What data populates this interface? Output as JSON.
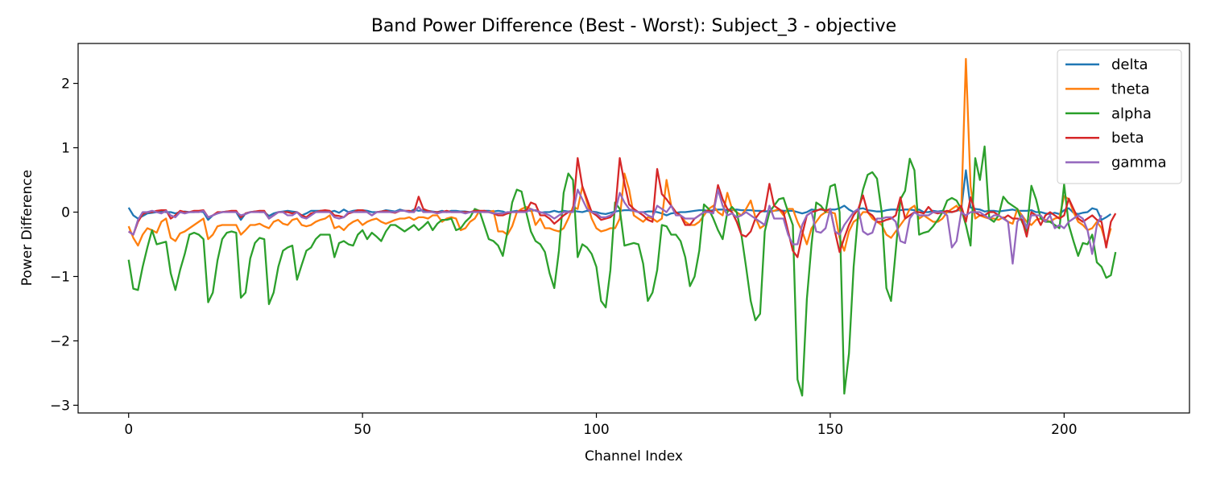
{
  "chart_data": {
    "type": "line",
    "title": "Band Power Difference (Best - Worst): Subject_3 - objective",
    "xlabel": "Channel Index",
    "ylabel": "Power Difference",
    "xlim": [
      -10.8,
      226.8
    ],
    "ylim": [
      -3.12,
      2.62
    ],
    "xticks": [
      0,
      50,
      100,
      150,
      200
    ],
    "yticks": [
      -3,
      -2,
      -1,
      0,
      1,
      2
    ],
    "tick_labels_x": [
      "0",
      "50",
      "100",
      "150",
      "200"
    ],
    "tick_labels_y": [
      "−3",
      "−2",
      "−1",
      "0",
      "1",
      "2"
    ],
    "grid": false,
    "legend_position": "top-right",
    "n_points": 216,
    "series": [
      {
        "name": "delta",
        "color": "#1f77b4",
        "values": [
          0.07,
          -0.05,
          -0.1,
          -0.06,
          -0.02,
          -0.01,
          0.0,
          0.01,
          0.0,
          0.0,
          -0.02,
          0.0,
          0.01,
          0.0,
          0.0,
          0.01,
          0.0,
          -0.12,
          -0.05,
          -0.02,
          0.0,
          0.01,
          0.01,
          0.0,
          -0.12,
          -0.02,
          0.0,
          0.01,
          0.0,
          0.0,
          -0.06,
          -0.02,
          0.0,
          0.01,
          0.02,
          0.01,
          0.0,
          -0.05,
          -0.02,
          0.02,
          0.02,
          0.02,
          0.01,
          0.0,
          0.02,
          -0.01,
          0.04,
          0.0,
          0.02,
          0.03,
          0.03,
          0.02,
          0.0,
          0.0,
          0.01,
          0.03,
          0.02,
          0.01,
          0.04,
          0.02,
          0.0,
          0.04,
          0.02,
          0.03,
          0.02,
          0.01,
          0.0,
          0.02,
          0.0,
          0.02,
          0.02,
          0.01,
          0.01,
          0.0,
          0.01,
          0.0,
          0.02,
          0.02,
          0.01,
          0.02,
          0.01,
          -0.02,
          0.01,
          0.02,
          0.01,
          0.03,
          0.02,
          0.03,
          -0.01,
          0.0,
          0.0,
          0.02,
          0.0,
          0.02,
          0.01,
          0.02,
          0.01,
          0.0,
          0.02,
          0.01,
          0.0,
          -0.02,
          -0.03,
          -0.01,
          0.01,
          0.02,
          0.03,
          0.03,
          0.02,
          0.0,
          0.0,
          0.01,
          0.01,
          0.0,
          -0.02,
          -0.05,
          -0.02,
          -0.01,
          0.0,
          0.0,
          0.01,
          0.02,
          0.03,
          0.03,
          0.02,
          0.03,
          0.04,
          0.04,
          0.03,
          0.03,
          0.04,
          0.03,
          0.03,
          0.03,
          0.02,
          0.02,
          0.01,
          0.02,
          0.02,
          0.03,
          0.02,
          0.02,
          0.02,
          0.0,
          -0.02,
          0.0,
          0.04,
          0.03,
          0.04,
          0.03,
          0.04,
          0.04,
          0.06,
          0.1,
          0.04,
          0.0,
          0.05,
          0.06,
          0.03,
          0.02,
          0.01,
          0.01,
          0.03,
          0.04,
          0.04,
          0.03,
          0.04,
          0.04,
          0.03,
          0.04,
          0.0,
          0.0,
          0.02,
          0.01,
          0.02,
          0.0,
          0.0,
          0.02,
          0.04,
          0.65,
          0.07,
          0.05,
          0.04,
          0.01,
          0.02,
          0.02,
          0.01,
          0.02,
          0.03,
          0.04,
          0.02,
          0.02,
          0.02,
          0.03,
          0.0,
          0.0,
          -0.02,
          -0.03,
          -0.01,
          -0.03,
          0.03,
          0.06,
          -0.01,
          -0.03,
          -0.01,
          0.0,
          0.06,
          0.04,
          -0.12,
          -0.08,
          -0.03
        ]
      },
      {
        "name": "theta",
        "color": "#ff7f0e",
        "values": [
          -0.22,
          -0.4,
          -0.52,
          -0.35,
          -0.25,
          -0.28,
          -0.32,
          -0.15,
          -0.1,
          -0.4,
          -0.45,
          -0.33,
          -0.3,
          -0.25,
          -0.2,
          -0.15,
          -0.1,
          -0.42,
          -0.35,
          -0.22,
          -0.2,
          -0.2,
          -0.2,
          -0.2,
          -0.35,
          -0.28,
          -0.2,
          -0.2,
          -0.18,
          -0.22,
          -0.25,
          -0.15,
          -0.12,
          -0.18,
          -0.2,
          -0.12,
          -0.1,
          -0.2,
          -0.22,
          -0.2,
          -0.15,
          -0.12,
          -0.1,
          -0.05,
          -0.25,
          -0.22,
          -0.28,
          -0.2,
          -0.15,
          -0.12,
          -0.2,
          -0.15,
          -0.12,
          -0.1,
          -0.15,
          -0.18,
          -0.15,
          -0.12,
          -0.1,
          -0.1,
          -0.08,
          -0.12,
          -0.08,
          -0.08,
          -0.1,
          -0.05,
          -0.05,
          -0.15,
          -0.1,
          -0.08,
          -0.1,
          -0.28,
          -0.25,
          -0.15,
          -0.1,
          0.02,
          0.0,
          0.0,
          0.02,
          -0.3,
          -0.3,
          -0.35,
          -0.22,
          0.0,
          0.05,
          0.08,
          0.05,
          -0.2,
          -0.1,
          -0.25,
          -0.25,
          -0.28,
          -0.3,
          -0.25,
          -0.1,
          0.08,
          0.05,
          0.4,
          0.15,
          -0.1,
          -0.25,
          -0.3,
          -0.28,
          -0.25,
          -0.25,
          -0.1,
          0.6,
          0.35,
          -0.05,
          -0.1,
          -0.15,
          -0.08,
          -0.1,
          -0.15,
          -0.1,
          0.5,
          0.1,
          0.0,
          -0.05,
          -0.15,
          -0.2,
          -0.2,
          -0.15,
          -0.05,
          0.05,
          0.1,
          0.0,
          -0.05,
          0.3,
          0.05,
          0.0,
          -0.05,
          0.05,
          0.18,
          -0.08,
          -0.25,
          -0.2,
          0.0,
          0.02,
          0.05,
          -0.05,
          0.05,
          0.05,
          -0.15,
          -0.3,
          -0.5,
          -0.25,
          -0.15,
          -0.05,
          0.0,
          0.0,
          -0.02,
          -0.4,
          -0.6,
          -0.3,
          -0.15,
          -0.1,
          0.0,
          0.0,
          -0.1,
          -0.15,
          -0.2,
          -0.35,
          -0.4,
          -0.3,
          -0.2,
          -0.1,
          0.05,
          0.1,
          -0.1,
          -0.05,
          -0.1,
          -0.15,
          -0.15,
          -0.1,
          0.0,
          0.05,
          0.1,
          0.0,
          2.38,
          0.4,
          -0.1,
          -0.05,
          -0.08,
          -0.1,
          -0.1,
          -0.12,
          -0.08,
          -0.15,
          -0.18,
          0.05,
          -0.05,
          -0.15,
          -0.2,
          -0.12,
          -0.1,
          -0.12,
          -0.15,
          -0.1,
          -0.08,
          0.25,
          0.2,
          0.0,
          -0.15,
          -0.2,
          -0.28,
          -0.25,
          -0.15,
          -0.25,
          -0.5,
          -0.25
        ]
      },
      {
        "name": "alpha",
        "color": "#2ca02c",
        "values": [
          -0.74,
          -1.19,
          -1.21,
          -0.85,
          -0.55,
          -0.28,
          -0.5,
          -0.48,
          -0.46,
          -0.95,
          -1.21,
          -0.9,
          -0.65,
          -0.35,
          -0.32,
          -0.35,
          -0.42,
          -1.4,
          -1.25,
          -0.75,
          -0.42,
          -0.32,
          -0.3,
          -0.32,
          -1.33,
          -1.25,
          -0.72,
          -0.48,
          -0.4,
          -0.42,
          -1.43,
          -1.25,
          -0.85,
          -0.6,
          -0.55,
          -0.52,
          -1.05,
          -0.82,
          -0.6,
          -0.55,
          -0.42,
          -0.35,
          -0.35,
          -0.35,
          -0.7,
          -0.48,
          -0.45,
          -0.5,
          -0.52,
          -0.35,
          -0.28,
          -0.42,
          -0.32,
          -0.38,
          -0.45,
          -0.3,
          -0.2,
          -0.2,
          -0.25,
          -0.3,
          -0.25,
          -0.2,
          -0.28,
          -0.22,
          -0.15,
          -0.28,
          -0.18,
          -0.12,
          -0.12,
          -0.1,
          -0.28,
          -0.25,
          -0.15,
          -0.08,
          0.05,
          0.02,
          -0.2,
          -0.42,
          -0.45,
          -0.52,
          -0.68,
          -0.3,
          0.15,
          0.35,
          0.32,
          0.0,
          -0.3,
          -0.45,
          -0.5,
          -0.62,
          -0.95,
          -1.18,
          -0.6,
          0.3,
          0.6,
          0.5,
          -0.7,
          -0.5,
          -0.55,
          -0.65,
          -0.85,
          -1.38,
          -1.48,
          -0.9,
          0.15,
          0.05,
          -0.52,
          -0.5,
          -0.48,
          -0.5,
          -0.8,
          -1.38,
          -1.25,
          -0.9,
          -0.2,
          -0.22,
          -0.35,
          -0.35,
          -0.45,
          -0.7,
          -1.15,
          -1.0,
          -0.6,
          0.12,
          0.05,
          -0.1,
          -0.28,
          -0.42,
          0.0,
          0.08,
          0.0,
          -0.35,
          -0.85,
          -1.38,
          -1.68,
          -1.58,
          -0.3,
          0.0,
          0.1,
          0.2,
          0.22,
          0.0,
          -0.2,
          -2.6,
          -2.85,
          -1.35,
          -0.5,
          0.15,
          0.1,
          0.0,
          0.4,
          0.43,
          0.0,
          -2.82,
          -2.2,
          -0.85,
          0.0,
          0.35,
          0.58,
          0.62,
          0.52,
          0.0,
          -1.18,
          -1.38,
          -0.6,
          0.2,
          0.33,
          0.83,
          0.65,
          -0.35,
          -0.32,
          -0.3,
          -0.22,
          -0.12,
          0.0,
          0.18,
          0.22,
          0.18,
          0.05,
          -0.2,
          -0.52,
          0.84,
          0.5,
          1.02,
          -0.1,
          -0.15,
          -0.05,
          0.24,
          0.15,
          0.1,
          0.05,
          -0.15,
          -0.3,
          0.41,
          0.2,
          -0.1,
          -0.15,
          -0.15,
          -0.2,
          -0.25,
          0.43,
          -0.2,
          -0.45,
          -0.68,
          -0.48,
          -0.5,
          -0.35,
          -0.78,
          -0.85,
          -1.02,
          -0.98,
          -0.62
        ]
      },
      {
        "name": "beta",
        "color": "#d62728",
        "values": [
          -0.3,
          -0.35,
          -0.15,
          -0.03,
          0.0,
          0.0,
          0.02,
          0.03,
          0.03,
          -0.1,
          -0.05,
          0.02,
          0.0,
          0.0,
          0.02,
          0.02,
          0.03,
          -0.08,
          -0.05,
          0.0,
          0.0,
          0.01,
          0.02,
          0.02,
          -0.08,
          -0.02,
          0.0,
          0.01,
          0.02,
          0.02,
          -0.1,
          -0.05,
          0.0,
          0.0,
          0.0,
          -0.02,
          0.0,
          -0.05,
          -0.08,
          -0.02,
          0.0,
          0.02,
          0.03,
          0.02,
          -0.05,
          -0.06,
          -0.08,
          -0.02,
          0.0,
          0.03,
          0.03,
          0.0,
          -0.05,
          0.0,
          0.01,
          0.02,
          0.0,
          -0.01,
          0.02,
          0.02,
          0.02,
          0.0,
          0.24,
          0.05,
          0.02,
          0.0,
          0.0,
          0.0,
          0.02,
          0.0,
          0.0,
          0.0,
          0.0,
          0.0,
          0.02,
          0.02,
          0.02,
          0.0,
          -0.02,
          -0.05,
          -0.05,
          -0.02,
          0.0,
          0.0,
          0.02,
          0.02,
          0.15,
          0.12,
          -0.05,
          -0.05,
          -0.1,
          -0.18,
          -0.12,
          -0.05,
          0.0,
          0.02,
          0.84,
          0.4,
          0.2,
          0.0,
          -0.05,
          -0.12,
          -0.1,
          -0.08,
          0.0,
          0.84,
          0.45,
          0.12,
          0.05,
          0.0,
          -0.05,
          -0.12,
          -0.15,
          0.67,
          0.28,
          0.2,
          0.1,
          0.0,
          -0.05,
          -0.2,
          -0.2,
          -0.1,
          -0.05,
          0.0,
          0.02,
          0.0,
          0.42,
          0.2,
          0.05,
          0.0,
          -0.15,
          -0.35,
          -0.38,
          -0.3,
          -0.1,
          0.0,
          0.03,
          0.44,
          0.1,
          0.05,
          0.0,
          -0.3,
          -0.6,
          -0.7,
          -0.35,
          -0.05,
          0.0,
          0.02,
          0.05,
          0.02,
          0.05,
          -0.3,
          -0.62,
          -0.4,
          -0.2,
          -0.05,
          0.05,
          0.26,
          0.0,
          -0.05,
          -0.15,
          -0.15,
          -0.12,
          -0.1,
          -0.05,
          0.23,
          -0.1,
          -0.05,
          0.0,
          0.0,
          -0.02,
          0.08,
          0.0,
          -0.02,
          0.0,
          0.02,
          0.0,
          0.02,
          0.1,
          -0.15,
          0.23,
          0.0,
          -0.05,
          -0.05,
          0.0,
          0.0,
          -0.05,
          -0.1,
          -0.05,
          -0.1,
          -0.1,
          -0.12,
          -0.38,
          0.0,
          -0.05,
          -0.2,
          -0.05,
          0.0,
          -0.05,
          -0.1,
          -0.05,
          0.21,
          0.05,
          -0.1,
          -0.15,
          -0.1,
          -0.05,
          -0.12,
          -0.15,
          -0.55,
          -0.15,
          -0.02
        ]
      },
      {
        "name": "gamma",
        "color": "#9467bd",
        "values": [
          -0.3,
          -0.35,
          -0.12,
          0.0,
          0.0,
          0.02,
          0.0,
          -0.02,
          0.02,
          -0.05,
          -0.08,
          0.0,
          -0.02,
          0.0,
          0.0,
          0.0,
          0.02,
          -0.08,
          -0.05,
          -0.02,
          0.0,
          0.0,
          0.0,
          0.0,
          -0.05,
          -0.03,
          0.0,
          0.0,
          0.0,
          0.0,
          -0.1,
          -0.05,
          0.0,
          0.0,
          -0.05,
          -0.05,
          0.0,
          -0.08,
          -0.1,
          -0.05,
          0.0,
          0.0,
          0.0,
          0.0,
          -0.08,
          -0.1,
          -0.08,
          0.0,
          0.0,
          0.0,
          0.0,
          0.0,
          -0.05,
          0.0,
          0.0,
          0.0,
          0.0,
          0.0,
          0.02,
          0.02,
          0.0,
          0.0,
          0.08,
          0.0,
          0.0,
          0.0,
          -0.02,
          0.0,
          0.0,
          0.0,
          0.0,
          0.0,
          -0.02,
          0.0,
          0.0,
          0.0,
          0.0,
          0.0,
          -0.02,
          -0.02,
          -0.02,
          0.0,
          0.0,
          0.0,
          0.0,
          0.0,
          0.05,
          0.02,
          0.0,
          -0.02,
          -0.05,
          -0.1,
          -0.05,
          0.0,
          0.0,
          0.0,
          0.35,
          0.2,
          0.05,
          0.0,
          -0.02,
          -0.08,
          -0.08,
          -0.05,
          0.0,
          0.3,
          0.15,
          0.05,
          0.02,
          0.0,
          0.0,
          -0.05,
          -0.08,
          0.1,
          0.05,
          0.0,
          0.1,
          -0.05,
          -0.05,
          -0.1,
          -0.1,
          -0.1,
          -0.05,
          0.0,
          0.0,
          -0.02,
          0.35,
          0.1,
          -0.05,
          -0.02,
          -0.08,
          -0.05,
          0.0,
          -0.05,
          -0.1,
          -0.15,
          -0.2,
          0.1,
          -0.1,
          -0.1,
          -0.1,
          -0.35,
          -0.5,
          -0.5,
          -0.2,
          -0.05,
          0.0,
          -0.3,
          -0.32,
          -0.25,
          0.05,
          -0.3,
          -0.35,
          -0.2,
          -0.1,
          0.0,
          0.05,
          -0.3,
          -0.35,
          -0.32,
          -0.1,
          -0.1,
          -0.08,
          -0.08,
          -0.15,
          -0.45,
          -0.48,
          -0.1,
          0.0,
          -0.05,
          -0.05,
          -0.05,
          0.0,
          0.0,
          0.0,
          -0.05,
          -0.55,
          -0.45,
          0.0,
          -0.05,
          0.0,
          0.0,
          0.0,
          -0.05,
          -0.1,
          -0.05,
          -0.05,
          -0.1,
          -0.15,
          -0.8,
          -0.15,
          -0.05,
          -0.25,
          -0.05,
          -0.05,
          -0.05,
          -0.15,
          -0.05,
          -0.25,
          -0.2,
          -0.25,
          -0.15,
          -0.1,
          -0.05,
          -0.1,
          -0.28,
          -0.65,
          -0.2,
          -0.05
        ]
      }
    ]
  }
}
